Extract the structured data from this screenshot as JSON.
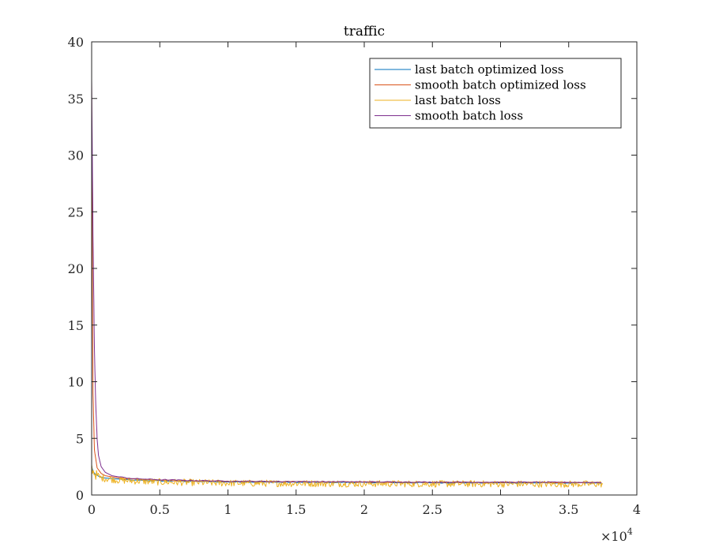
{
  "chart_data": {
    "type": "line",
    "title": "traffic",
    "xlabel": "",
    "ylabel": "",
    "xlim": [
      0,
      40000
    ],
    "ylim": [
      0,
      40
    ],
    "x_exponent_label": "×10",
    "x_exponent_power": "4",
    "x_ticks": [
      {
        "value": 0,
        "label": "0"
      },
      {
        "value": 5000,
        "label": "0.5"
      },
      {
        "value": 10000,
        "label": "1"
      },
      {
        "value": 15000,
        "label": "1.5"
      },
      {
        "value": 20000,
        "label": "2"
      },
      {
        "value": 25000,
        "label": "2.5"
      },
      {
        "value": 30000,
        "label": "3"
      },
      {
        "value": 35000,
        "label": "3.5"
      },
      {
        "value": 40000,
        "label": "4"
      }
    ],
    "y_ticks": [
      {
        "value": 0,
        "label": "0"
      },
      {
        "value": 5,
        "label": "5"
      },
      {
        "value": 10,
        "label": "10"
      },
      {
        "value": 15,
        "label": "15"
      },
      {
        "value": 20,
        "label": "20"
      },
      {
        "value": 25,
        "label": "25"
      },
      {
        "value": 30,
        "label": "30"
      },
      {
        "value": 35,
        "label": "35"
      },
      {
        "value": 40,
        "label": "40"
      }
    ],
    "grid": false,
    "legend_position": "top-right",
    "series": [
      {
        "name": "last batch optimized loss",
        "color": "#0072BD",
        "x": [
          0,
          50,
          150,
          300,
          600,
          1000,
          2000,
          3000,
          5000,
          7500,
          10000,
          15000,
          20000,
          25000,
          30000,
          35000,
          37500
        ],
        "y": [
          2.6,
          2.3,
          2.0,
          1.8,
          1.6,
          1.5,
          1.4,
          1.3,
          1.25,
          1.2,
          1.15,
          1.12,
          1.1,
          1.08,
          1.07,
          1.06,
          1.05
        ]
      },
      {
        "name": "smooth batch optimized loss",
        "color": "#D95319",
        "x": [
          0,
          50,
          100,
          200,
          400,
          700,
          1000,
          2000,
          3000,
          5000,
          7500,
          10000,
          15000,
          20000,
          25000,
          30000,
          35000,
          37500
        ],
        "y": [
          36.5,
          20.0,
          9.0,
          4.0,
          2.4,
          1.9,
          1.7,
          1.5,
          1.4,
          1.3,
          1.25,
          1.2,
          1.17,
          1.15,
          1.13,
          1.12,
          1.11,
          1.1
        ]
      },
      {
        "name": "last batch loss",
        "color": "#EDB120",
        "x": [
          0,
          100,
          300,
          600,
          1000,
          2000,
          3000,
          5000,
          7500,
          10000,
          15000,
          20000,
          25000,
          30000,
          35000,
          37500
        ],
        "y": [
          2.5,
          2.1,
          1.8,
          1.55,
          1.45,
          1.3,
          1.25,
          1.15,
          1.1,
          1.05,
          1.02,
          1.0,
          0.99,
          0.98,
          0.97,
          0.97
        ],
        "noise": 0.3
      },
      {
        "name": "smooth batch loss",
        "color": "#7E2F8E",
        "x": [
          0,
          100,
          200,
          300,
          400,
          500,
          700,
          1000,
          1500,
          2000,
          3000,
          5000,
          7500,
          10000,
          15000,
          20000,
          25000,
          30000,
          35000,
          37500
        ],
        "y": [
          36.8,
          23.0,
          13.0,
          8.0,
          5.0,
          3.5,
          2.5,
          2.0,
          1.7,
          1.6,
          1.45,
          1.35,
          1.28,
          1.22,
          1.18,
          1.16,
          1.14,
          1.13,
          1.12,
          1.11
        ]
      }
    ]
  }
}
